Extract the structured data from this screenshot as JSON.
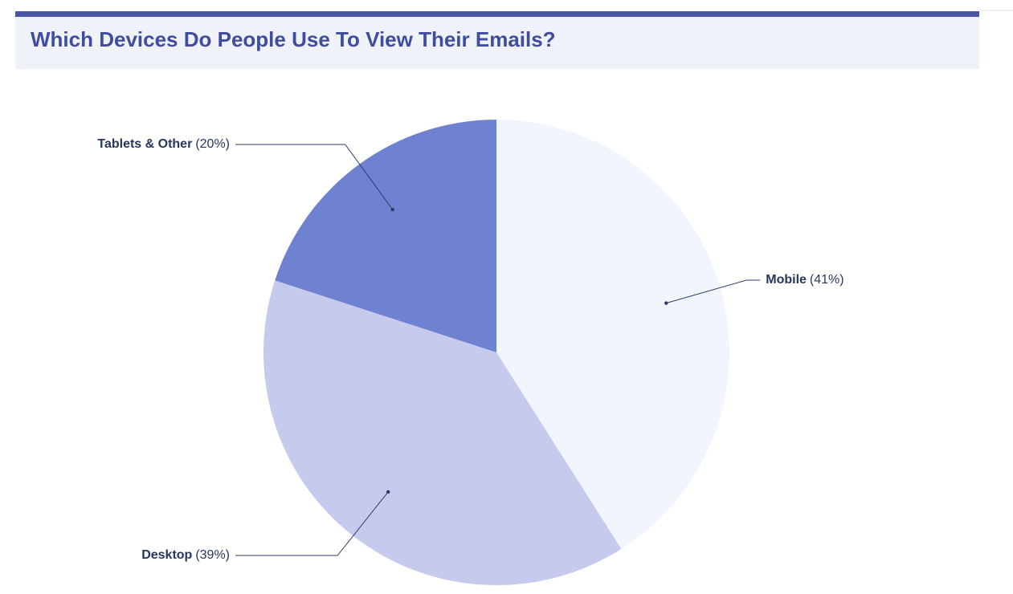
{
  "chart_data": {
    "type": "pie",
    "title": "Which Devices Do People Use To View Their Emails?",
    "categories": [
      "Mobile",
      "Desktop",
      "Tablets & Other"
    ],
    "values": [
      41,
      39,
      20
    ],
    "value_labels": [
      "(41%)",
      "(39%)",
      "(20%)"
    ],
    "colors": [
      "#f1f5fd",
      "#c6cbee",
      "#6f82d2"
    ]
  }
}
